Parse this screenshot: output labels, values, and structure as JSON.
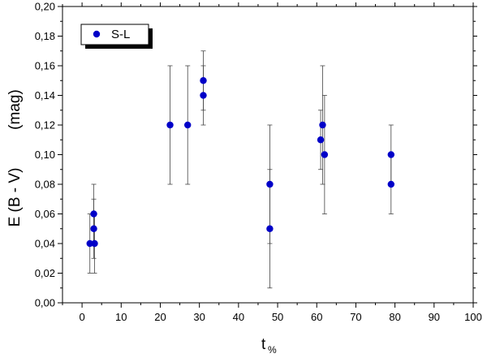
{
  "chart_data": {
    "type": "scatter",
    "title": "",
    "xlabel": "t",
    "xlabel_sub": "%",
    "ylabel": "E (B - V)",
    "ylabel_unit": "(mag)",
    "xlim": [
      -5,
      100
    ],
    "ylim": [
      0.0,
      0.2
    ],
    "x_ticks": [
      "0",
      "10",
      "20",
      "30",
      "40",
      "50",
      "60",
      "70",
      "80",
      "90",
      "100"
    ],
    "y_ticks": [
      "0,00",
      "0,02",
      "0,04",
      "0,06",
      "0,08",
      "0,10",
      "0,12",
      "0,14",
      "0,16",
      "0,18",
      "0,20"
    ],
    "grid": false,
    "legend_position": "top-left",
    "series": [
      {
        "name": "S-L",
        "color": "#0000c8",
        "points": [
          {
            "x": 2.0,
            "y": 0.04,
            "ylow": 0.02,
            "yhigh": 0.06
          },
          {
            "x": 3.0,
            "y": 0.06,
            "ylow": 0.04,
            "yhigh": 0.08
          },
          {
            "x": 3.0,
            "y": 0.05,
            "ylow": 0.03,
            "yhigh": 0.07
          },
          {
            "x": 3.2,
            "y": 0.04,
            "ylow": 0.02,
            "yhigh": 0.06
          },
          {
            "x": 22.5,
            "y": 0.12,
            "ylow": 0.08,
            "yhigh": 0.16
          },
          {
            "x": 27.0,
            "y": 0.12,
            "ylow": 0.08,
            "yhigh": 0.16
          },
          {
            "x": 31.0,
            "y": 0.15,
            "ylow": 0.13,
            "yhigh": 0.17
          },
          {
            "x": 31.0,
            "y": 0.14,
            "ylow": 0.12,
            "yhigh": 0.16
          },
          {
            "x": 48.0,
            "y": 0.08,
            "ylow": 0.04,
            "yhigh": 0.12
          },
          {
            "x": 48.0,
            "y": 0.05,
            "ylow": 0.01,
            "yhigh": 0.09
          },
          {
            "x": 61.0,
            "y": 0.11,
            "ylow": 0.09,
            "yhigh": 0.13
          },
          {
            "x": 61.5,
            "y": 0.12,
            "ylow": 0.08,
            "yhigh": 0.16
          },
          {
            "x": 62.0,
            "y": 0.1,
            "ylow": 0.06,
            "yhigh": 0.14
          },
          {
            "x": 79.0,
            "y": 0.1,
            "ylow": 0.08,
            "yhigh": 0.12
          },
          {
            "x": 79.0,
            "y": 0.08,
            "ylow": 0.06,
            "yhigh": 0.1
          }
        ]
      }
    ]
  }
}
